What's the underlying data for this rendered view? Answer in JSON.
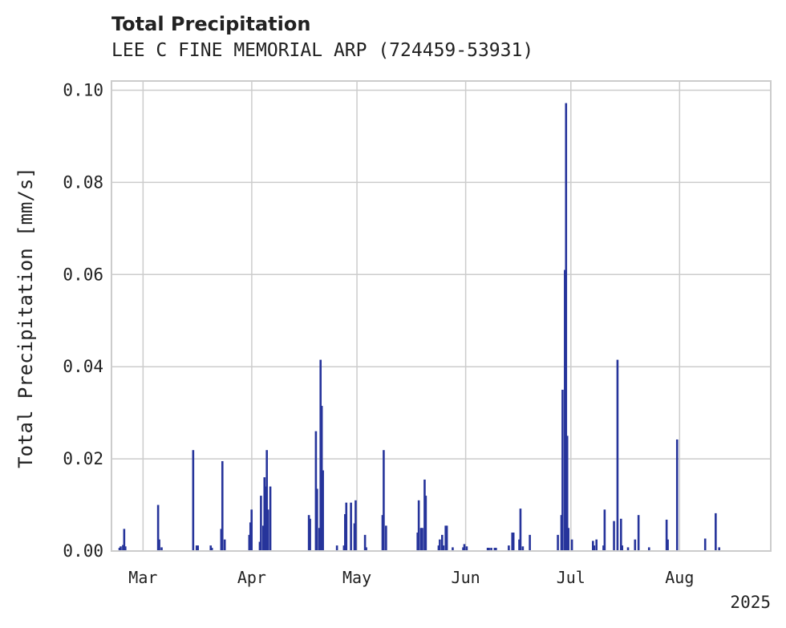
{
  "chart_data": {
    "type": "bar",
    "title": "Total Precipitation",
    "subtitle": "LEE C FINE MEMORIAL ARP (724459-53931)",
    "xlabel": "",
    "ylabel": "Total Precipitation [mm/s]",
    "ylim": [
      0,
      0.102
    ],
    "yticks": [
      0.0,
      0.02,
      0.04,
      0.06,
      0.08,
      0.1
    ],
    "ytick_labels": [
      "0.00",
      "0.02",
      "0.04",
      "0.06",
      "0.08",
      "0.10"
    ],
    "xlim": [
      "2025-02-20",
      "2025-08-27"
    ],
    "xticks": [
      {
        "date": "2025-03-01",
        "label": "Mar"
      },
      {
        "date": "2025-04-01",
        "label": "Apr"
      },
      {
        "date": "2025-05-01",
        "label": "May"
      },
      {
        "date": "2025-06-01",
        "label": "Jun"
      },
      {
        "date": "2025-07-01",
        "label": "Jul"
      },
      {
        "date": "2025-08-01",
        "label": "Aug"
      }
    ],
    "year_label": "2025",
    "grid": true,
    "color": "#26349b",
    "series": [
      {
        "values": [
          [
            "2025-02-22",
            0.0007
          ],
          [
            "2025-02-22",
            0.001
          ],
          [
            "2025-02-23",
            0.0013
          ],
          [
            "2025-02-23",
            0.0048
          ],
          [
            "2025-02-23",
            0.001
          ],
          [
            "2025-03-05",
            0.01
          ],
          [
            "2025-03-05",
            0.0025
          ],
          [
            "2025-03-06",
            0.0008
          ],
          [
            "2025-03-15",
            0.0219
          ],
          [
            "2025-03-16",
            0.0012
          ],
          [
            "2025-03-16",
            0.0012
          ],
          [
            "2025-03-20",
            0.0012
          ],
          [
            "2025-03-20",
            0.0007
          ],
          [
            "2025-03-23",
            0.0048
          ],
          [
            "2025-03-23",
            0.0195
          ],
          [
            "2025-03-24",
            0.0025
          ],
          [
            "2025-03-31",
            0.0035
          ],
          [
            "2025-03-31",
            0.0062
          ],
          [
            "2025-03-31",
            0.009
          ],
          [
            "2025-04-03",
            0.002
          ],
          [
            "2025-04-03",
            0.012
          ],
          [
            "2025-04-04",
            0.0055
          ],
          [
            "2025-04-04",
            0.016
          ],
          [
            "2025-04-04",
            0.014
          ],
          [
            "2025-04-05",
            0.0219
          ],
          [
            "2025-04-05",
            0.009
          ],
          [
            "2025-04-06",
            0.014
          ],
          [
            "2025-04-17",
            0.0078
          ],
          [
            "2025-04-17",
            0.007
          ],
          [
            "2025-04-19",
            0.026
          ],
          [
            "2025-04-19",
            0.0135
          ],
          [
            "2025-04-20",
            0.005
          ],
          [
            "2025-04-20",
            0.0415
          ],
          [
            "2025-04-20",
            0.0315
          ],
          [
            "2025-04-21",
            0.0175
          ],
          [
            "2025-04-25",
            0.0012
          ],
          [
            "2025-04-27",
            0.0012
          ],
          [
            "2025-04-27",
            0.008
          ],
          [
            "2025-04-27",
            0.0105
          ],
          [
            "2025-04-29",
            0.0105
          ],
          [
            "2025-04-30",
            0.006
          ],
          [
            "2025-04-30",
            0.011
          ],
          [
            "2025-05-03",
            0.0035
          ],
          [
            "2025-05-03",
            0.0008
          ],
          [
            "2025-05-08",
            0.0078
          ],
          [
            "2025-05-08",
            0.0219
          ],
          [
            "2025-05-09",
            0.0055
          ],
          [
            "2025-05-18",
            0.004
          ],
          [
            "2025-05-18",
            0.011
          ],
          [
            "2025-05-19",
            0.005
          ],
          [
            "2025-05-19",
            0.005
          ],
          [
            "2025-05-20",
            0.0155
          ],
          [
            "2025-05-20",
            0.012
          ],
          [
            "2025-05-24",
            0.0012
          ],
          [
            "2025-05-24",
            0.0025
          ],
          [
            "2025-05-25",
            0.0035
          ],
          [
            "2025-05-25",
            0.0012
          ],
          [
            "2025-05-26",
            0.0055
          ],
          [
            "2025-05-26",
            0.0055
          ],
          [
            "2025-05-28",
            0.0008
          ],
          [
            "2025-05-31",
            0.0008
          ],
          [
            "2025-05-31",
            0.0015
          ],
          [
            "2025-06-01",
            0.001
          ],
          [
            "2025-06-07",
            0.0007
          ],
          [
            "2025-06-07",
            0.0007
          ],
          [
            "2025-06-08",
            0.0007
          ],
          [
            "2025-06-09",
            0.0007
          ],
          [
            "2025-06-09",
            0.0007
          ],
          [
            "2025-06-13",
            0.0012
          ],
          [
            "2025-06-14",
            0.004
          ],
          [
            "2025-06-14",
            0.004
          ],
          [
            "2025-06-16",
            0.0025
          ],
          [
            "2025-06-16",
            0.0092
          ],
          [
            "2025-06-17",
            0.001
          ],
          [
            "2025-06-19",
            0.0035
          ],
          [
            "2025-06-27",
            0.0035
          ],
          [
            "2025-06-28",
            0.0078
          ],
          [
            "2025-06-28",
            0.035
          ],
          [
            "2025-06-29",
            0.061
          ],
          [
            "2025-06-29",
            0.0972
          ],
          [
            "2025-06-29",
            0.025
          ],
          [
            "2025-06-30",
            0.005
          ],
          [
            "2025-07-01",
            0.0025
          ],
          [
            "2025-07-07",
            0.0022
          ],
          [
            "2025-07-07",
            0.0012
          ],
          [
            "2025-07-08",
            0.0025
          ],
          [
            "2025-07-10",
            0.0012
          ],
          [
            "2025-07-10",
            0.009
          ],
          [
            "2025-07-13",
            0.0065
          ],
          [
            "2025-07-14",
            0.0415
          ],
          [
            "2025-07-15",
            0.007
          ],
          [
            "2025-07-15",
            0.0012
          ],
          [
            "2025-07-17",
            0.0008
          ],
          [
            "2025-07-19",
            0.0025
          ],
          [
            "2025-07-20",
            0.0078
          ],
          [
            "2025-07-23",
            0.0008
          ],
          [
            "2025-07-28",
            0.0068
          ],
          [
            "2025-07-28",
            0.0025
          ],
          [
            "2025-07-31",
            0.0242
          ],
          [
            "2025-08-08",
            0.0027
          ],
          [
            "2025-08-11",
            0.0082
          ],
          [
            "2025-08-12",
            0.0008
          ]
        ]
      }
    ]
  }
}
